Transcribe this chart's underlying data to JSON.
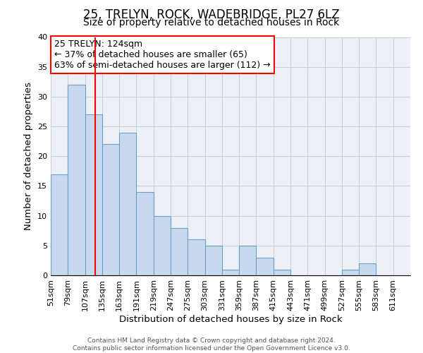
{
  "title": "25, TRELYN, ROCK, WADEBRIDGE, PL27 6LZ",
  "subtitle": "Size of property relative to detached houses in Rock",
  "xlabel": "Distribution of detached houses by size in Rock",
  "ylabel": "Number of detached properties",
  "footer_line1": "Contains HM Land Registry data © Crown copyright and database right 2024.",
  "footer_line2": "Contains public sector information licensed under the Open Government Licence v3.0.",
  "annotation_title": "25 TRELYN: 124sqm",
  "annotation_line1": "← 37% of detached houses are smaller (65)",
  "annotation_line2": "63% of semi-detached houses are larger (112) →",
  "bar_left_edges": [
    51,
    79,
    107,
    135,
    163,
    191,
    219,
    247,
    275,
    303,
    331,
    359,
    387,
    415,
    443,
    471,
    499,
    527,
    555,
    583
  ],
  "bar_heights": [
    17,
    32,
    27,
    22,
    24,
    14,
    10,
    8,
    6,
    5,
    1,
    5,
    3,
    1,
    0,
    0,
    0,
    1,
    2,
    0
  ],
  "bin_width": 28,
  "bar_color": "#c9d9ed",
  "bar_edgecolor": "#6aa0c7",
  "bar_linewidth": 0.8,
  "marker_x": 124,
  "marker_color": "red",
  "xlim": [
    51,
    639
  ],
  "ylim": [
    0,
    40
  ],
  "yticks": [
    0,
    5,
    10,
    15,
    20,
    25,
    30,
    35,
    40
  ],
  "xtick_labels": [
    "51sqm",
    "79sqm",
    "107sqm",
    "135sqm",
    "163sqm",
    "191sqm",
    "219sqm",
    "247sqm",
    "275sqm",
    "303sqm",
    "331sqm",
    "359sqm",
    "387sqm",
    "415sqm",
    "443sqm",
    "471sqm",
    "499sqm",
    "527sqm",
    "555sqm",
    "583sqm",
    "611sqm"
  ],
  "xtick_positions": [
    51,
    79,
    107,
    135,
    163,
    191,
    219,
    247,
    275,
    303,
    331,
    359,
    387,
    415,
    443,
    471,
    499,
    527,
    555,
    583,
    611
  ],
  "grid_color": "#c8d0dc",
  "background_color": "#edf1f7",
  "title_fontsize": 12,
  "subtitle_fontsize": 10,
  "axis_label_fontsize": 9.5,
  "tick_fontsize": 8,
  "annotation_box_edgecolor": "red",
  "annotation_box_facecolor": "white",
  "annotation_fontsize": 9
}
